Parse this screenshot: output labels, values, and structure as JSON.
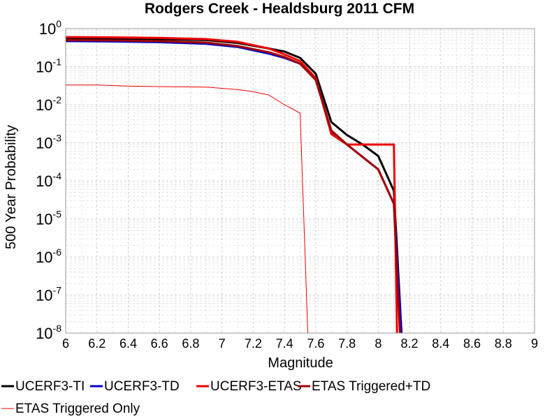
{
  "chart_data": {
    "type": "line",
    "title": "Rodgers Creek - Healdsburg 2011 CFM",
    "xlabel": "Magnitude",
    "ylabel": "500 Year Probability",
    "xlim": [
      6,
      9
    ],
    "ylim": [
      1e-08,
      1
    ],
    "yscale": "log",
    "grid": true,
    "legend_position": "bottom",
    "x_ticks": [
      "6",
      "6.2",
      "6.4",
      "6.6",
      "6.8",
      "7",
      "7.2",
      "7.4",
      "7.6",
      "7.8",
      "8",
      "8.2",
      "8.4",
      "8.6",
      "8.8",
      "9"
    ],
    "y_ticks": [
      {
        "base": "10",
        "exp": "0",
        "value": 1
      },
      {
        "base": "10",
        "exp": "-1",
        "value": 0.1
      },
      {
        "base": "10",
        "exp": "-2",
        "value": 0.01
      },
      {
        "base": "10",
        "exp": "-3",
        "value": 0.001
      },
      {
        "base": "10",
        "exp": "-4",
        "value": 0.0001
      },
      {
        "base": "10",
        "exp": "-5",
        "value": 1e-05
      },
      {
        "base": "10",
        "exp": "-6",
        "value": 1e-06
      },
      {
        "base": "10",
        "exp": "-7",
        "value": 1e-07
      },
      {
        "base": "10",
        "exp": "-8",
        "value": 1e-08
      }
    ],
    "series": [
      {
        "name": "UCERF3-TI",
        "color": "#000000",
        "width": 3,
        "points": [
          [
            6.0,
            0.56
          ],
          [
            6.3,
            0.55
          ],
          [
            6.6,
            0.53
          ],
          [
            6.9,
            0.5
          ],
          [
            7.1,
            0.42
          ],
          [
            7.3,
            0.3
          ],
          [
            7.4,
            0.25
          ],
          [
            7.5,
            0.17
          ],
          [
            7.6,
            0.065
          ],
          [
            7.7,
            0.0035
          ],
          [
            7.8,
            0.0016
          ],
          [
            7.9,
            0.0009
          ],
          [
            8.0,
            0.00045
          ],
          [
            8.1,
            5.5e-05
          ],
          [
            8.15,
            8e-09
          ]
        ]
      },
      {
        "name": "UCERF3-TD",
        "color": "#0000cc",
        "width": 3,
        "points": [
          [
            6.0,
            0.47
          ],
          [
            6.3,
            0.46
          ],
          [
            6.6,
            0.44
          ],
          [
            6.9,
            0.4
          ],
          [
            7.1,
            0.33
          ],
          [
            7.3,
            0.22
          ],
          [
            7.4,
            0.17
          ],
          [
            7.5,
            0.12
          ],
          [
            7.6,
            0.045
          ],
          [
            7.7,
            0.002
          ],
          [
            7.8,
            0.0009
          ],
          [
            8.0,
            0.0002
          ],
          [
            8.1,
            2.5e-05
          ],
          [
            8.15,
            8e-09
          ]
        ]
      },
      {
        "name": "UCERF3-ETAS",
        "color": "#ee0000",
        "width": 3,
        "points": [
          [
            6.0,
            0.6
          ],
          [
            6.3,
            0.59
          ],
          [
            6.6,
            0.57
          ],
          [
            6.9,
            0.53
          ],
          [
            7.1,
            0.45
          ],
          [
            7.3,
            0.3
          ],
          [
            7.4,
            0.21
          ],
          [
            7.5,
            0.14
          ],
          [
            7.6,
            0.05
          ],
          [
            7.7,
            0.0017
          ],
          [
            7.8,
            0.0009
          ],
          [
            8.1,
            0.0009
          ],
          [
            8.12,
            1e-08
          ]
        ]
      },
      {
        "name": "ETAS Triggered+TD",
        "color": "#a00000",
        "width": 3,
        "points": [
          [
            6.0,
            0.5
          ],
          [
            6.3,
            0.49
          ],
          [
            6.6,
            0.47
          ],
          [
            6.9,
            0.43
          ],
          [
            7.1,
            0.35
          ],
          [
            7.3,
            0.24
          ],
          [
            7.4,
            0.18
          ],
          [
            7.5,
            0.12
          ],
          [
            7.6,
            0.045
          ],
          [
            7.7,
            0.0021
          ],
          [
            7.8,
            0.0009
          ],
          [
            8.0,
            0.0002
          ],
          [
            8.1,
            2.5e-05
          ],
          [
            8.14,
            8e-09
          ]
        ]
      },
      {
        "name": "ETAS Triggered Only",
        "color": "#ee0000",
        "width": 1,
        "points": [
          [
            6.0,
            0.033
          ],
          [
            6.2,
            0.033
          ],
          [
            6.4,
            0.031
          ],
          [
            6.6,
            0.03
          ],
          [
            6.9,
            0.029
          ],
          [
            7.0,
            0.027
          ],
          [
            7.1,
            0.025
          ],
          [
            7.2,
            0.022
          ],
          [
            7.3,
            0.018
          ],
          [
            7.4,
            0.01
          ],
          [
            7.5,
            0.006
          ],
          [
            7.55,
            8e-09
          ]
        ]
      }
    ]
  }
}
